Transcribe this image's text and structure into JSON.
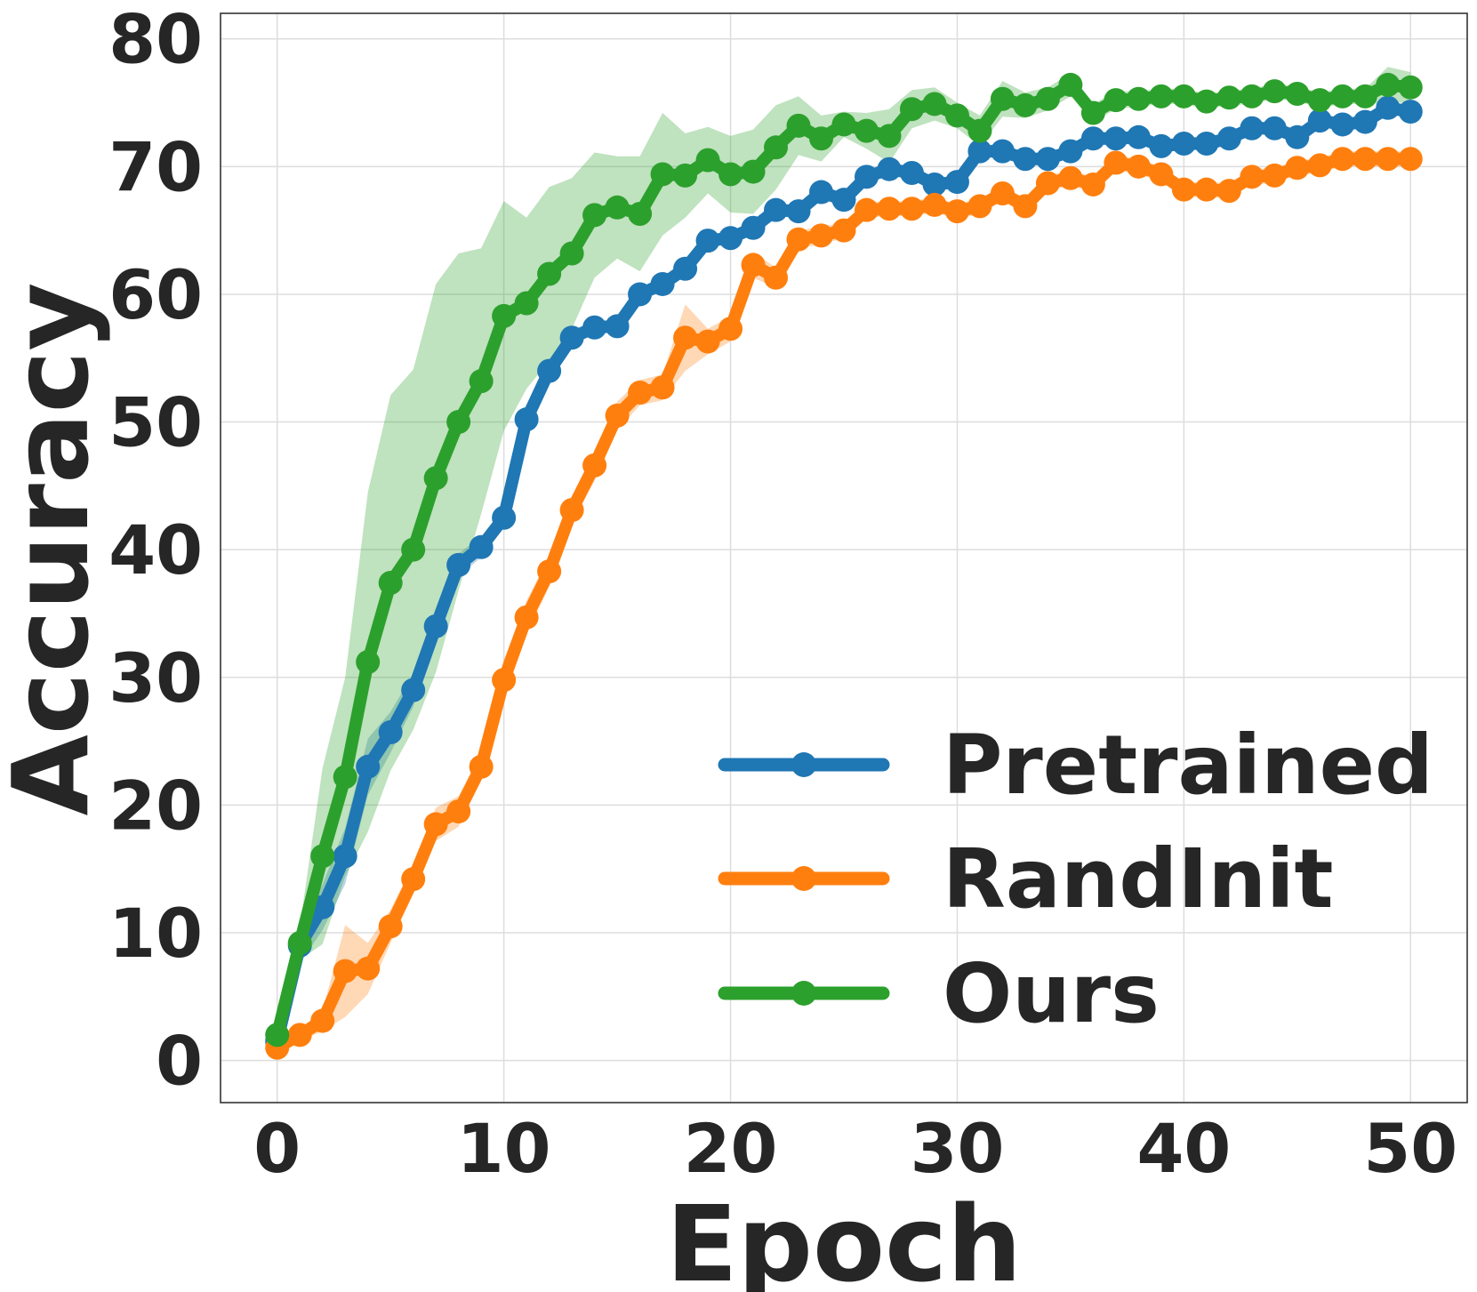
{
  "chart_data": {
    "type": "line",
    "title": "",
    "xlabel": "Epoch",
    "ylabel": "Accuracy",
    "xlim": [
      -2.5,
      52.5
    ],
    "ylim": [
      -3.3,
      82
    ],
    "xticks": [
      0,
      10,
      20,
      30,
      40,
      50
    ],
    "yticks": [
      0,
      10,
      20,
      30,
      40,
      50,
      60,
      70,
      80
    ],
    "grid": true,
    "legend_position": "lower-right",
    "x": [
      0,
      1,
      2,
      3,
      4,
      5,
      6,
      7,
      8,
      9,
      10,
      11,
      12,
      13,
      14,
      15,
      16,
      17,
      18,
      19,
      20,
      21,
      22,
      23,
      24,
      25,
      26,
      27,
      28,
      29,
      30,
      31,
      32,
      33,
      34,
      35,
      36,
      37,
      38,
      39,
      40,
      41,
      42,
      43,
      44,
      45,
      46,
      47,
      48,
      49,
      50
    ],
    "series": [
      {
        "name": "Pretrained",
        "color": "#1f77b4",
        "values": [
          1.5,
          9,
          12,
          16,
          23,
          25.7,
          29,
          34,
          38.8,
          40.2,
          42.5,
          50.2,
          54,
          56.6,
          57.4,
          57.5,
          60,
          60.8,
          62,
          64.2,
          64.4,
          65.2,
          66.6,
          66.5,
          68,
          67.4,
          69.2,
          69.8,
          69.5,
          68.6,
          68.8,
          71.2,
          71.2,
          70.6,
          70.6,
          71.2,
          72.2,
          72.2,
          72.3,
          71.6,
          71.8,
          71.8,
          72.2,
          73,
          73,
          72.3,
          73.6,
          73.3,
          73.5,
          74.6,
          74.3
        ],
        "band_width": [
          0.3,
          1.4,
          1.8,
          2.2,
          2.2,
          1.6,
          1.3,
          1.1,
          0.9,
          0.8,
          0.7,
          0.6,
          0.6,
          0.5,
          0.5,
          0.5,
          0.5,
          0.5,
          0.5,
          0.5,
          0.5,
          0.5,
          0.5,
          0.5,
          0.5,
          0.5,
          0.5,
          0.5,
          0.5,
          0.5,
          0.5,
          0.5,
          0.5,
          0.5,
          0.5,
          0.5,
          0.5,
          0.5,
          0.5,
          0.5,
          0.5,
          0.5,
          0.5,
          0.5,
          0.5,
          0.5,
          0.5,
          0.5,
          0.5,
          0.5,
          0.5
        ]
      },
      {
        "name": "RandInit",
        "color": "#ff7f0e",
        "values": [
          1,
          2,
          3.1,
          7,
          7.2,
          10.5,
          14.2,
          18.5,
          19.5,
          23,
          29.8,
          34.7,
          38.3,
          43.1,
          46.6,
          50.5,
          52.3,
          52.7,
          56.6,
          56.3,
          57.3,
          62.3,
          61.3,
          64.3,
          64.6,
          65,
          66.6,
          66.7,
          66.7,
          67,
          66.5,
          66.9,
          67.9,
          66.9,
          68.7,
          69.1,
          68.6,
          70.3,
          70,
          69.4,
          68.2,
          68.2,
          68.1,
          69.2,
          69.3,
          69.9,
          70.1,
          70.6,
          70.6,
          70.6,
          70.6
        ],
        "band_width": [
          0.3,
          0.5,
          0.8,
          3.6,
          2,
          1.3,
          1.2,
          1.3,
          1.2,
          1.1,
          1.6,
          1.3,
          1.2,
          1.1,
          1.2,
          1.1,
          1,
          1,
          2.6,
          1,
          1,
          1,
          0.8,
          0.7,
          0.7,
          0.6,
          0.6,
          0.6,
          0.6,
          0.6,
          0.6,
          0.6,
          0.6,
          0.6,
          0.6,
          0.6,
          0.6,
          0.6,
          0.6,
          0.6,
          0.6,
          0.6,
          0.6,
          0.6,
          0.6,
          0.6,
          0.6,
          0.6,
          0.6,
          0.6,
          0.6
        ]
      },
      {
        "name": "Ours",
        "color": "#2ca02c",
        "values": [
          2,
          9.2,
          16,
          22.2,
          31.2,
          37.4,
          40,
          45.6,
          50,
          53.2,
          58.3,
          59.3,
          61.6,
          63.2,
          66.2,
          66.8,
          66.3,
          69.4,
          69.3,
          70.5,
          69.4,
          69.6,
          71.5,
          73.2,
          72.2,
          73.3,
          72.8,
          72.4,
          74.5,
          74.9,
          74,
          72.8,
          75.3,
          74.8,
          75.3,
          76.4,
          74.2,
          75.2,
          75.3,
          75.5,
          75.5,
          75.1,
          75.4,
          75.5,
          75.9,
          75.7,
          75.2,
          75.5,
          75.5,
          76.4,
          76.2
        ],
        "band_width": [
          0.5,
          1.3,
          6.9,
          7.8,
          13.3,
          14.7,
          14.1,
          15.2,
          13.2,
          10.4,
          9,
          6.7,
          6.8,
          5.9,
          4.9,
          4,
          4.5,
          4.8,
          3.3,
          2.6,
          3,
          3.3,
          3.3,
          2.3,
          1.8,
          1,
          1.4,
          2.1,
          1.5,
          1.3,
          1,
          1.2,
          1.4,
          1,
          0.9,
          0.9,
          0.7,
          0.7,
          0.6,
          0.6,
          0.6,
          0.6,
          0.6,
          0.6,
          0.6,
          0.6,
          0.6,
          0.6,
          0.6,
          1.4,
          1.2
        ]
      }
    ]
  }
}
